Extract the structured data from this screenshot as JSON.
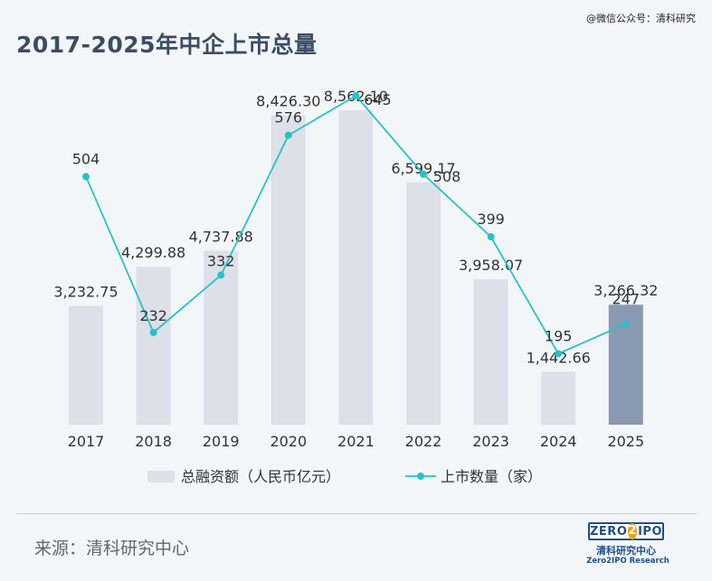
{
  "watermark": "@微信公众号：清科研究",
  "title": "2017-2025年中企上市总量",
  "source": "来源：清科研究中心",
  "logo": {
    "top_left": "ZERO",
    "digit": "2",
    "top_right": "IPO",
    "cn": "清科研究中心",
    "en": "Zero2IPO Research"
  },
  "colors": {
    "bar": "#dde0e8",
    "bar_highlight": "#8a9ab2",
    "line": "#26c2c9",
    "title": "#3c4d63"
  },
  "chart_data": {
    "type": "bar",
    "title": "2017-2025年中企上市总量",
    "categories": [
      "2017",
      "2018",
      "2019",
      "2020",
      "2021",
      "2022",
      "2023",
      "2024",
      "2025"
    ],
    "series": [
      {
        "name": "总融资额（人民币亿元）",
        "type": "bar",
        "values": [
          3232.75,
          4299.88,
          4737.88,
          8426.3,
          8562.1,
          6599.17,
          3958.07,
          1442.66,
          3266.32
        ],
        "labels": [
          "3,232.75",
          "4,299.88",
          "4,737.88",
          "8,426.30",
          "8,562.10",
          "6,599.17",
          "3,958.07",
          "1,442.66",
          "3,266.32"
        ],
        "highlight_index": 8
      },
      {
        "name": "上市数量（家）",
        "type": "line",
        "values": [
          504,
          232,
          332,
          576,
          645,
          508,
          399,
          195,
          247
        ],
        "labels": [
          "504",
          "232",
          "332",
          "576",
          "645",
          "508",
          "399",
          "195",
          "247"
        ]
      }
    ],
    "legend_position": "bottom",
    "grid": false
  }
}
